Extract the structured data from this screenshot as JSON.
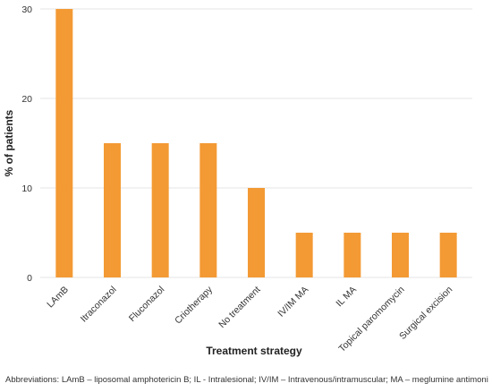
{
  "chart_data": {
    "type": "bar",
    "title": "",
    "xlabel": "Treatment strategy",
    "ylabel": "% of patients",
    "categories": [
      "LAmB",
      "Itraconazol",
      "Fluconazol",
      "Criotherapy",
      "No treatment",
      "IV/IM MA",
      "IL MA",
      "Topical paromomycin",
      "Surgical excision"
    ],
    "values": [
      30,
      15,
      15,
      15,
      10,
      5,
      5,
      5,
      5
    ],
    "ylim": [
      0,
      30
    ],
    "yticks": [
      0,
      10,
      20,
      30
    ],
    "grid": true,
    "legend": "none",
    "bar_color": "#f39a34",
    "grid_color": "#e6e6e6"
  },
  "footnote": "Abbreviations: LAmB – liposomal amphotericin B; IL - Intralesional; IV/IM – Intravenous/intramuscular; MA – meglumine antimoniate"
}
